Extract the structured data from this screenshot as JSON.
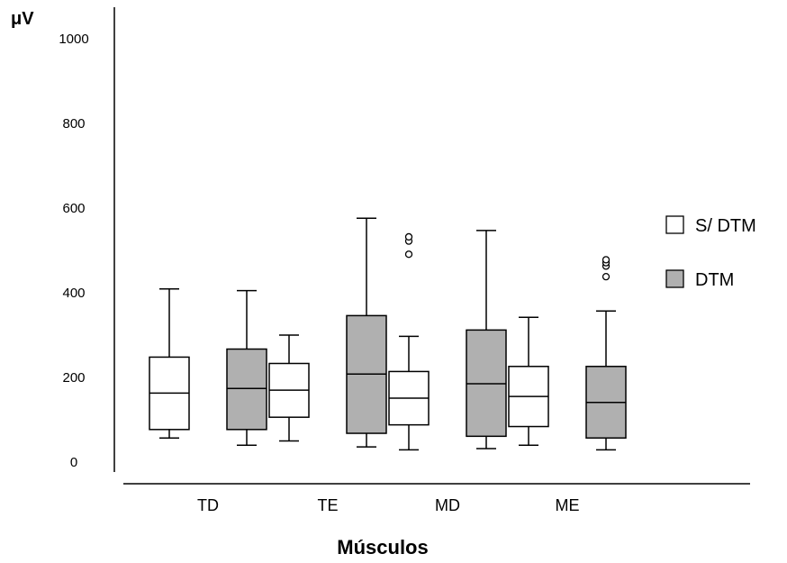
{
  "chart_data": {
    "type": "boxplot",
    "title": "",
    "ylabel": "μV",
    "xlabel": "Músculos",
    "ylim": [
      0,
      1000
    ],
    "yticks": [
      0,
      200,
      400,
      600,
      800,
      1000
    ],
    "categories": [
      "TD",
      "TE",
      "MD",
      "ME"
    ],
    "legend_position": "right",
    "grid": false,
    "series": [
      {
        "name": "S/ DTM",
        "color": "#ffffff",
        "boxes": [
          {
            "min": 57,
            "q1": 77,
            "median": 163,
            "q3": 248,
            "max": 409,
            "outliers": []
          },
          {
            "min": 50,
            "q1": 106,
            "median": 170,
            "q3": 233,
            "max": 300,
            "outliers": []
          },
          {
            "min": 29,
            "q1": 88,
            "median": 151,
            "q3": 214,
            "max": 297,
            "outliers": [
              491,
              522,
              532
            ]
          },
          {
            "min": 40,
            "q1": 84,
            "median": 155,
            "q3": 226,
            "max": 342,
            "outliers": []
          }
        ]
      },
      {
        "name": "DTM",
        "color": "#b0b0b0",
        "boxes": [
          {
            "min": 40,
            "q1": 77,
            "median": 174,
            "q3": 267,
            "max": 405,
            "outliers": []
          },
          {
            "min": 36,
            "q1": 68,
            "median": 208,
            "q3": 346,
            "max": 576,
            "outliers": []
          },
          {
            "min": 32,
            "q1": 61,
            "median": 185,
            "q3": 312,
            "max": 547,
            "outliers": []
          },
          {
            "min": 29,
            "q1": 57,
            "median": 141,
            "q3": 226,
            "max": 357,
            "outliers": [
              438,
              463,
              471,
              478
            ]
          }
        ]
      }
    ]
  }
}
